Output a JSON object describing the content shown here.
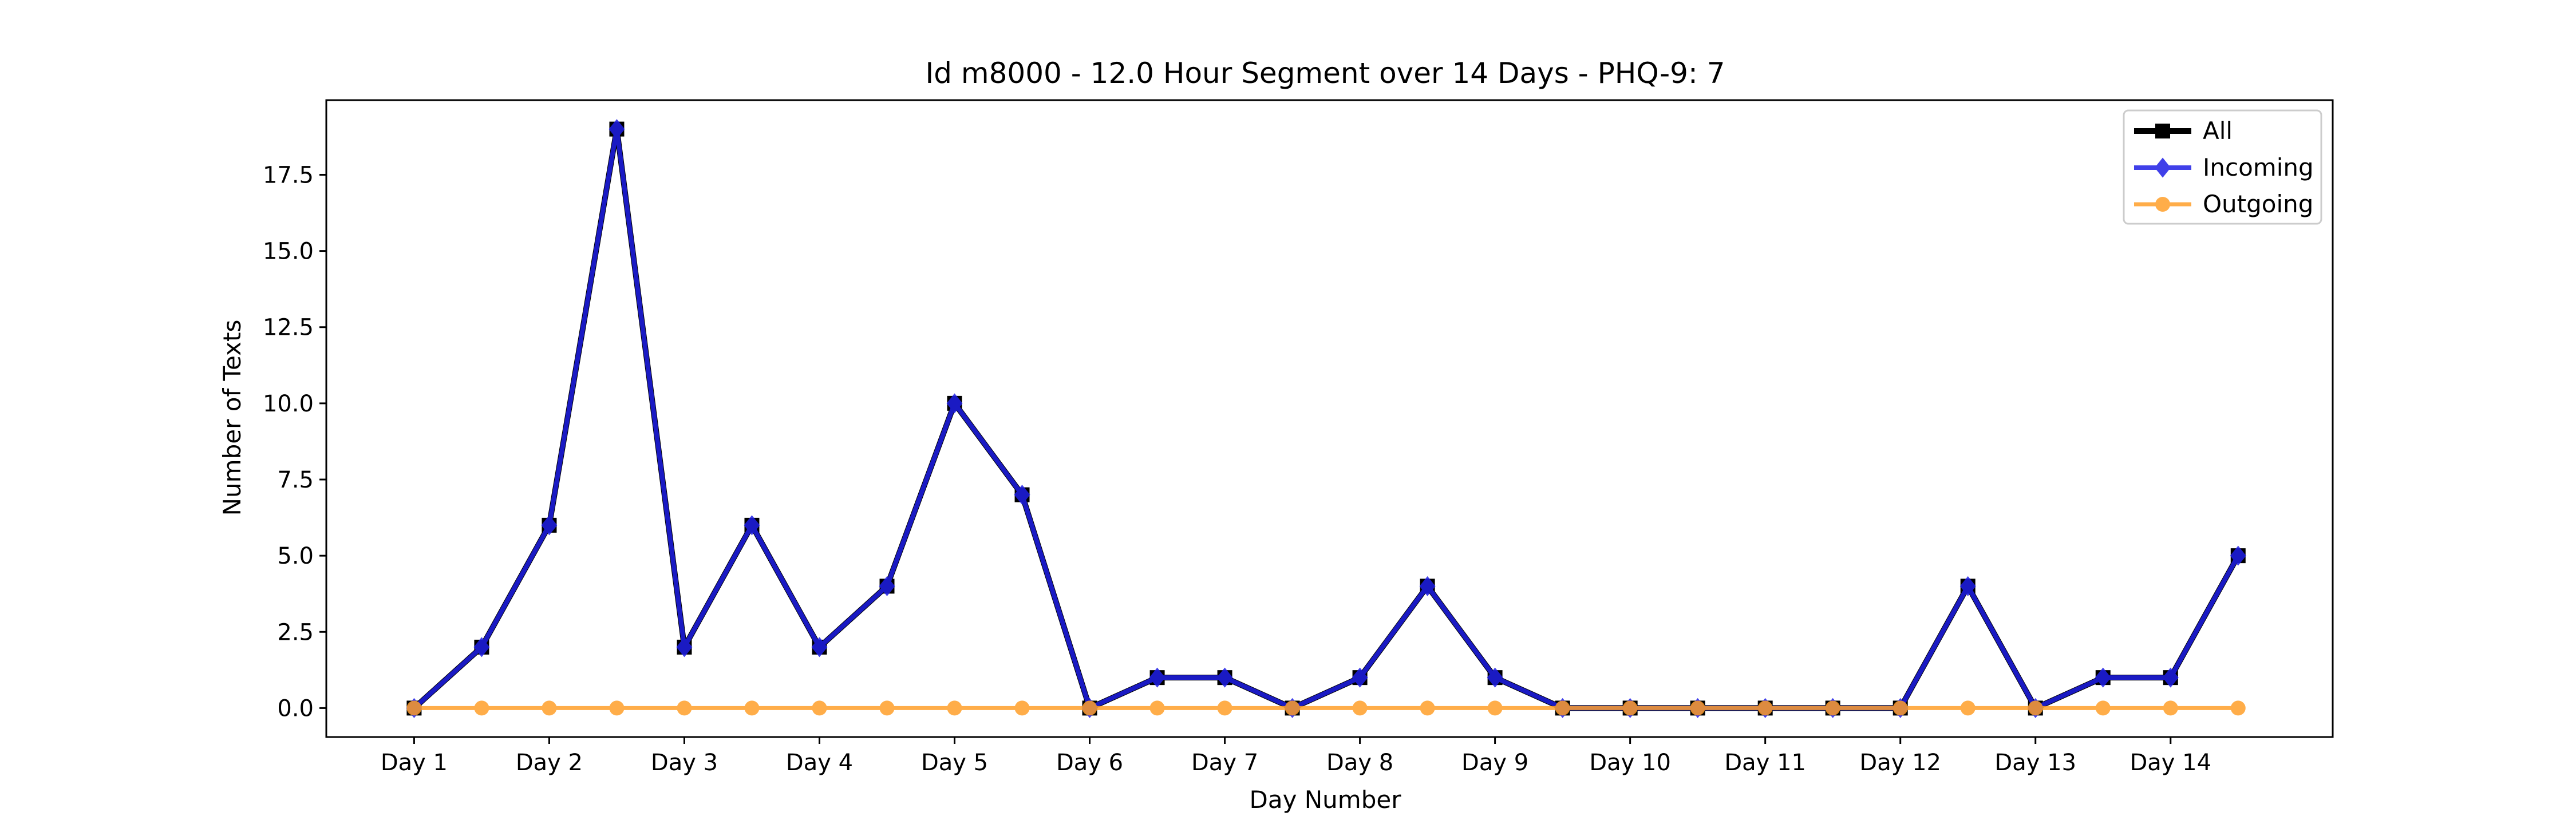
{
  "chart_data": {
    "type": "line",
    "title": "Id m8000 - 12.0 Hour Segment over 14 Days - PHQ-9: 7",
    "xlabel": "Day Number",
    "ylabel": "Number of Texts",
    "xlim": [
      0.35,
      15.2
    ],
    "ylim": [
      -0.95,
      19.95
    ],
    "x_tick_labels": [
      "Day 1",
      "Day 2",
      "Day 3",
      "Day 4",
      "Day 5",
      "Day 6",
      "Day 7",
      "Day 8",
      "Day 9",
      "Day 10",
      "Day 11",
      "Day 12",
      "Day 13",
      "Day 14"
    ],
    "x_tick_positions": [
      1,
      2,
      3,
      4,
      5,
      6,
      7,
      8,
      9,
      10,
      11,
      12,
      13,
      14
    ],
    "y_tick_labels": [
      "0.0",
      "2.5",
      "5.0",
      "7.5",
      "10.0",
      "12.5",
      "15.0",
      "17.5"
    ],
    "y_tick_values": [
      0,
      2.5,
      5,
      7.5,
      10,
      12.5,
      15,
      17.5
    ],
    "x": [
      1,
      1.5,
      2,
      2.5,
      3,
      3.5,
      4,
      4.5,
      5,
      5.5,
      6,
      6.5,
      7,
      7.5,
      8,
      8.5,
      9,
      9.5,
      10,
      10.5,
      11,
      11.5,
      12,
      12.5,
      13,
      13.5,
      14,
      14.5
    ],
    "series": [
      {
        "name": "All",
        "color": "#000000",
        "marker": "square",
        "values": [
          0,
          2,
          6,
          19,
          2,
          6,
          2,
          4,
          10,
          7,
          0,
          1,
          1,
          0,
          1,
          4,
          1,
          0,
          0,
          0,
          0,
          0,
          0,
          4,
          0,
          1,
          1,
          5
        ]
      },
      {
        "name": "Incoming",
        "color": "#1f1fe6",
        "marker": "diamond",
        "values": [
          0,
          2,
          6,
          19,
          2,
          6,
          2,
          4,
          10,
          7,
          0,
          1,
          1,
          0,
          1,
          4,
          1,
          0,
          0,
          0,
          0,
          0,
          0,
          4,
          0,
          1,
          1,
          5
        ]
      },
      {
        "name": "Outgoing",
        "color": "#ff9f2a",
        "marker": "circle",
        "values": [
          0,
          0,
          0,
          0,
          0,
          0,
          0,
          0,
          0,
          0,
          0,
          0,
          0,
          0,
          0,
          0,
          0,
          0,
          0,
          0,
          0,
          0,
          0,
          0,
          0,
          0,
          0,
          0
        ]
      }
    ],
    "grid": false,
    "legend_position": "top-right"
  }
}
